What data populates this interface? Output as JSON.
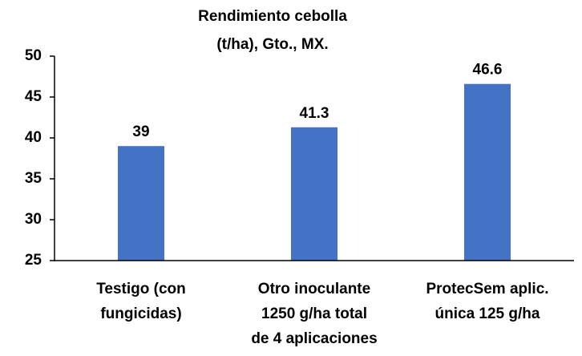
{
  "chart_data": {
    "type": "bar",
    "title": [
      "Rendimiento cebolla",
      "(t/ha), Gto., MX."
    ],
    "categories": [
      [
        "Testigo (con",
        "fungicidas)"
      ],
      [
        "Otro inoculante",
        "1250 g/ha total",
        "de 4 aplicaciones"
      ],
      [
        "ProtecSem aplic.",
        "única 125 g/ha"
      ]
    ],
    "values": [
      39,
      41.3,
      46.6
    ],
    "color": "#4472c4",
    "ylim": [
      25,
      50
    ],
    "yticks": [
      25,
      30,
      35,
      40,
      45,
      50
    ],
    "grid": false
  }
}
